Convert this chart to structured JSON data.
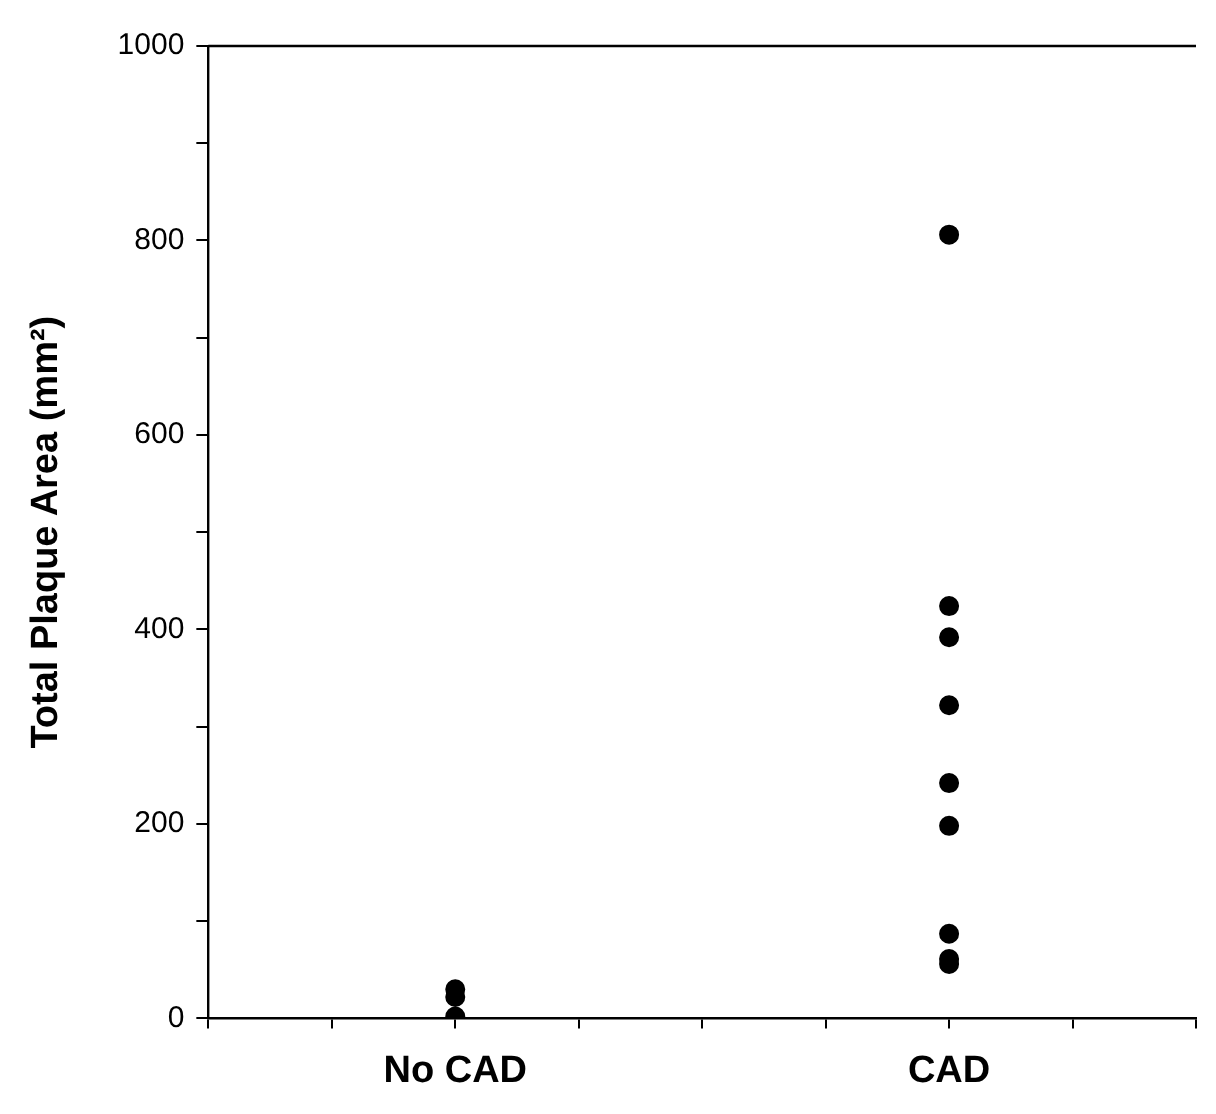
{
  "chart_data": {
    "type": "scatter",
    "ylabel": "Total Plaque Area (mm²)",
    "categories": [
      "No CAD",
      "CAD"
    ],
    "series": [
      {
        "color": "#000000",
        "x": [
          "No CAD",
          "No CAD",
          "No CAD",
          "CAD",
          "CAD",
          "CAD",
          "CAD",
          "CAD",
          "CAD",
          "CAD",
          "CAD",
          "CAD"
        ],
        "values": [
          30,
          22,
          2,
          806,
          424,
          392,
          322,
          242,
          198,
          87,
          61,
          56
        ]
      }
    ],
    "ylim": [
      0,
      1000
    ],
    "yticks": [
      0,
      {
        "value": 100,
        "label": null
      },
      200,
      {
        "value": 300,
        "label": null
      },
      400,
      {
        "value": 500,
        "label": null
      },
      600,
      {
        "value": 700,
        "label": null
      },
      800,
      {
        "value": 900,
        "label": null
      },
      1000
    ],
    "grid": false,
    "legend": false,
    "marker": "circle"
  }
}
